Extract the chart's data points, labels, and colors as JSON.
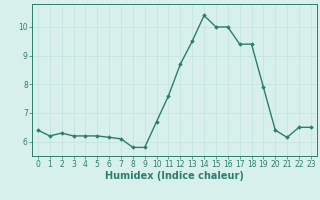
{
  "x": [
    0,
    1,
    2,
    3,
    4,
    5,
    6,
    7,
    8,
    9,
    10,
    11,
    12,
    13,
    14,
    15,
    16,
    17,
    18,
    19,
    20,
    21,
    22,
    23
  ],
  "y": [
    6.4,
    6.2,
    6.3,
    6.2,
    6.2,
    6.2,
    6.15,
    6.1,
    5.8,
    5.8,
    6.7,
    7.6,
    8.7,
    9.5,
    10.4,
    10.0,
    10.0,
    9.4,
    9.4,
    7.9,
    6.4,
    6.15,
    6.5,
    6.5
  ],
  "line_color": "#2d7d6e",
  "marker": "D",
  "marker_size": 1.8,
  "line_width": 1.0,
  "xlabel": "Humidex (Indice chaleur)",
  "xlabel_fontsize": 7,
  "xlabel_color": "#2d7d6e",
  "xlim": [
    -0.5,
    23.5
  ],
  "ylim": [
    5.5,
    10.8
  ],
  "yticks": [
    6,
    7,
    8,
    9,
    10
  ],
  "xticks": [
    0,
    1,
    2,
    3,
    4,
    5,
    6,
    7,
    8,
    9,
    10,
    11,
    12,
    13,
    14,
    15,
    16,
    17,
    18,
    19,
    20,
    21,
    22,
    23
  ],
  "tick_fontsize": 5.5,
  "tick_color": "#2d7d6e",
  "grid_color": "#c0e4de",
  "bg_color": "#d8f0ec",
  "spine_color": "#2d7d6e"
}
